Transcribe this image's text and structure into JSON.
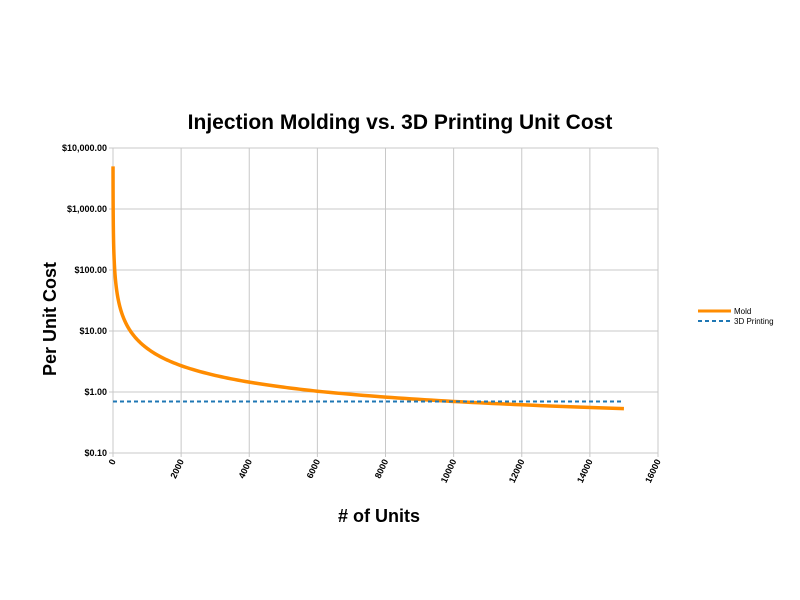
{
  "chart_data": {
    "type": "line",
    "title": "Injection Molding vs. 3D Printing Unit Cost",
    "xlabel": "# of Units",
    "ylabel": "Per Unit Cost",
    "xlim": [
      0,
      16000
    ],
    "ylim": [
      0.1,
      10000
    ],
    "yscale": "log",
    "grid": true,
    "legend": "right",
    "xticks": [
      "0",
      "2000",
      "4000",
      "6000",
      "8000",
      "10000",
      "12000",
      "14000",
      "16000"
    ],
    "yticks": [
      "$0.10",
      "$1.00",
      "$10.00",
      "$100.00",
      "$1,000.00",
      "$10,000.00"
    ],
    "series": [
      {
        "name": "Mold",
        "color": "#ff8c00",
        "style": "solid",
        "x": [
          1,
          5,
          10,
          20,
          30,
          50,
          100,
          200,
          300,
          500,
          700,
          1000,
          1500,
          2000,
          3000,
          4000,
          5000,
          6000,
          8000,
          10000,
          12000,
          15000
        ],
        "y": [
          5000.2,
          1000.2,
          500.2,
          250.2,
          166.9,
          100.2,
          50.2,
          25.2,
          16.87,
          10.2,
          7.34,
          5.2,
          3.53,
          2.7,
          1.87,
          1.45,
          1.2,
          1.03,
          0.825,
          0.7,
          0.617,
          0.533
        ]
      },
      {
        "name": "3D Printing",
        "color": "#1f77b4",
        "style": "dashed",
        "x": [
          0,
          15000
        ],
        "y": [
          0.7,
          0.7
        ]
      }
    ]
  }
}
